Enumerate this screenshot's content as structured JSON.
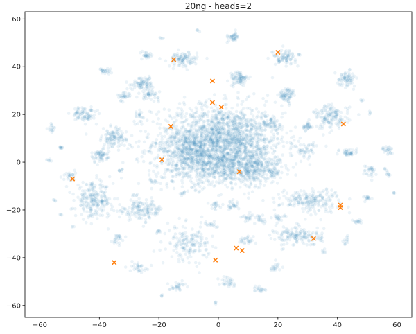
{
  "chart_data": {
    "type": "scatter",
    "title": "20ng - heads=2",
    "xlabel": "",
    "ylabel": "",
    "xlim": [
      -65,
      65
    ],
    "ylim": [
      -65,
      63
    ],
    "xticks": [
      -60,
      -40,
      -20,
      0,
      20,
      40,
      60
    ],
    "yticks": [
      -60,
      -40,
      -20,
      0,
      20,
      40,
      60
    ],
    "grid": false,
    "colors": {
      "points": "#1f77b4",
      "markers": "#ff7f0e"
    },
    "clusters": [
      {
        "cx": 0,
        "cy": 8,
        "rx": 22,
        "ry": 16,
        "n": 1600
      },
      {
        "cx": 2,
        "cy": 12,
        "rx": 14,
        "ry": 10,
        "n": 300
      },
      {
        "cx": 0,
        "cy": -2,
        "rx": 20,
        "ry": 8,
        "n": 500
      },
      {
        "cx": 12,
        "cy": -2,
        "rx": 7,
        "ry": 7,
        "n": 200
      },
      {
        "cx": -10,
        "cy": 5,
        "rx": 8,
        "ry": 8,
        "n": 200
      },
      {
        "cx": -42,
        "cy": -16,
        "rx": 6,
        "ry": 7,
        "n": 220
      },
      {
        "cx": -26,
        "cy": -20,
        "rx": 8,
        "ry": 4,
        "n": 150
      },
      {
        "cx": -10,
        "cy": -34,
        "rx": 7,
        "ry": 7,
        "n": 160
      },
      {
        "cx": 31,
        "cy": -16,
        "rx": 10,
        "ry": 5,
        "n": 200
      },
      {
        "cx": 27,
        "cy": -31,
        "rx": 8,
        "ry": 4,
        "n": 150
      },
      {
        "cx": 38,
        "cy": 19,
        "rx": 6,
        "ry": 5,
        "n": 140
      },
      {
        "cx": -35,
        "cy": 10,
        "rx": 4,
        "ry": 4,
        "n": 110
      },
      {
        "cx": -12,
        "cy": 43,
        "rx": 5,
        "ry": 3,
        "n": 100
      },
      {
        "cx": 7,
        "cy": 35,
        "rx": 3,
        "ry": 3,
        "n": 80
      },
      {
        "cx": 23,
        "cy": 28,
        "rx": 3,
        "ry": 3,
        "n": 70
      },
      {
        "cx": 22,
        "cy": 44,
        "rx": 4,
        "ry": 3,
        "n": 80
      },
      {
        "cx": 43,
        "cy": 35,
        "rx": 3,
        "ry": 3,
        "n": 70
      },
      {
        "cx": -25,
        "cy": 33,
        "rx": 4,
        "ry": 3,
        "n": 80
      },
      {
        "cx": -23,
        "cy": 28,
        "rx": 3,
        "ry": 2,
        "n": 40
      },
      {
        "cx": -45,
        "cy": 20,
        "rx": 4,
        "ry": 3,
        "n": 80
      },
      {
        "cx": -40,
        "cy": 3,
        "rx": 3,
        "ry": 3,
        "n": 60
      },
      {
        "cx": 5,
        "cy": 52,
        "rx": 2,
        "ry": 2,
        "n": 40
      },
      {
        "cx": -24,
        "cy": 45,
        "rx": 2,
        "ry": 1.5,
        "n": 25
      },
      {
        "cx": -38,
        "cy": 38,
        "rx": 2,
        "ry": 1.5,
        "n": 25
      },
      {
        "cx": -32,
        "cy": 28,
        "rx": 2,
        "ry": 2,
        "n": 30
      },
      {
        "cx": -27,
        "cy": 20,
        "rx": 1.5,
        "ry": 1.5,
        "n": 15
      },
      {
        "cx": -56,
        "cy": 14,
        "rx": 1,
        "ry": 2,
        "n": 15
      },
      {
        "cx": -53,
        "cy": 6,
        "rx": 1,
        "ry": 1,
        "n": 10
      },
      {
        "cx": -50,
        "cy": -6,
        "rx": 2,
        "ry": 2,
        "n": 25
      },
      {
        "cx": -55,
        "cy": -16,
        "rx": 0.6,
        "ry": 0.6,
        "n": 4
      },
      {
        "cx": 18,
        "cy": 16,
        "rx": 3,
        "ry": 3,
        "n": 50
      },
      {
        "cx": 30,
        "cy": 15,
        "rx": 2,
        "ry": 2,
        "n": 30
      },
      {
        "cx": 29,
        "cy": 5,
        "rx": 3,
        "ry": 3,
        "n": 40
      },
      {
        "cx": 44,
        "cy": 4,
        "rx": 3,
        "ry": 2,
        "n": 40
      },
      {
        "cx": 57,
        "cy": 5,
        "rx": 2,
        "ry": 2,
        "n": 25
      },
      {
        "cx": 51,
        "cy": -4,
        "rx": 2,
        "ry": 3,
        "n": 30
      },
      {
        "cx": 57,
        "cy": -5,
        "rx": 1,
        "ry": 1,
        "n": 8
      },
      {
        "cx": 18,
        "cy": -4,
        "rx": 3,
        "ry": 3,
        "n": 40
      },
      {
        "cx": 5,
        "cy": -18,
        "rx": 2,
        "ry": 2,
        "n": 25
      },
      {
        "cx": -1,
        "cy": -18,
        "rx": 2,
        "ry": 2,
        "n": 20
      },
      {
        "cx": 10,
        "cy": -23,
        "rx": 2,
        "ry": 2,
        "n": 20
      },
      {
        "cx": -2,
        "cy": -26,
        "rx": 2,
        "ry": 1.5,
        "n": 15
      },
      {
        "cx": 9,
        "cy": -33,
        "rx": 2,
        "ry": 2,
        "n": 25
      },
      {
        "cx": 14,
        "cy": -24,
        "rx": 2,
        "ry": 2,
        "n": 20
      },
      {
        "cx": 20,
        "cy": -23,
        "rx": 2,
        "ry": 2,
        "n": 20
      },
      {
        "cx": -34,
        "cy": -32,
        "rx": 2,
        "ry": 2,
        "n": 25
      },
      {
        "cx": -27,
        "cy": -44,
        "rx": 3,
        "ry": 2,
        "n": 30
      },
      {
        "cx": -14,
        "cy": -52,
        "rx": 3,
        "ry": 2,
        "n": 30
      },
      {
        "cx": 3,
        "cy": -50,
        "rx": 3,
        "ry": 2,
        "n": 30
      },
      {
        "cx": 14,
        "cy": -53,
        "rx": 2,
        "ry": 1.5,
        "n": 20
      },
      {
        "cx": 19,
        "cy": -44,
        "rx": 2,
        "ry": 2,
        "n": 20
      },
      {
        "cx": 47,
        "cy": -25,
        "rx": 2,
        "ry": 1,
        "n": 15
      },
      {
        "cx": 50,
        "cy": -15,
        "rx": 2,
        "ry": 1,
        "n": 15
      },
      {
        "cx": 43,
        "cy": -33,
        "rx": 1,
        "ry": 2,
        "n": 12
      },
      {
        "cx": 35,
        "cy": -37,
        "rx": 1,
        "ry": 1,
        "n": 6
      },
      {
        "cx": -22,
        "cy": -8,
        "rx": 1,
        "ry": 1,
        "n": 8
      },
      {
        "cx": -33,
        "cy": -3,
        "rx": 1,
        "ry": 1,
        "n": 8
      },
      {
        "cx": -12,
        "cy": -13,
        "rx": 1,
        "ry": 1,
        "n": 8
      },
      {
        "cx": -7,
        "cy": 55,
        "rx": 0.6,
        "ry": 0.6,
        "n": 4
      },
      {
        "cx": -19,
        "cy": 52,
        "rx": 0.6,
        "ry": 0.6,
        "n": 4
      },
      {
        "cx": 27,
        "cy": 45,
        "rx": 0.6,
        "ry": 0.6,
        "n": 4
      },
      {
        "cx": 48,
        "cy": 26,
        "rx": 0.6,
        "ry": 0.6,
        "n": 4
      },
      {
        "cx": 51,
        "cy": 21,
        "rx": 0.6,
        "ry": 0.6,
        "n": 4
      },
      {
        "cx": 56,
        "cy": -3,
        "rx": 0.6,
        "ry": 0.6,
        "n": 4
      },
      {
        "cx": 59,
        "cy": -13,
        "rx": 0.6,
        "ry": 0.6,
        "n": 4
      },
      {
        "cx": -19,
        "cy": -56,
        "rx": 0.6,
        "ry": 0.6,
        "n": 4
      },
      {
        "cx": -1,
        "cy": -59,
        "rx": 0.6,
        "ry": 0.6,
        "n": 4
      },
      {
        "cx": -57,
        "cy": 1,
        "rx": 1,
        "ry": 0.6,
        "n": 6
      },
      {
        "cx": -49,
        "cy": -27,
        "rx": 0.6,
        "ry": 0.6,
        "n": 3
      },
      {
        "cx": -53,
        "cy": -22,
        "rx": 0.6,
        "ry": 0.6,
        "n": 3
      },
      {
        "cx": -20,
        "cy": -29,
        "rx": 1.2,
        "ry": 1.2,
        "n": 8
      },
      {
        "cx": -28,
        "cy": -14,
        "rx": 1,
        "ry": 1,
        "n": 6
      }
    ],
    "markers": [
      {
        "x": 20,
        "y": 46
      },
      {
        "x": -15,
        "y": 43
      },
      {
        "x": -2,
        "y": 34
      },
      {
        "x": -2,
        "y": 25
      },
      {
        "x": 1,
        "y": 23
      },
      {
        "x": -16,
        "y": 15
      },
      {
        "x": 42,
        "y": 16
      },
      {
        "x": -19,
        "y": 1
      },
      {
        "x": 7,
        "y": -4
      },
      {
        "x": -49,
        "y": -7
      },
      {
        "x": 41,
        "y": -18
      },
      {
        "x": 41,
        "y": -19
      },
      {
        "x": 32,
        "y": -32
      },
      {
        "x": 6,
        "y": -36
      },
      {
        "x": 8,
        "y": -37
      },
      {
        "x": -1,
        "y": -41
      },
      {
        "x": -35,
        "y": -42
      }
    ]
  }
}
